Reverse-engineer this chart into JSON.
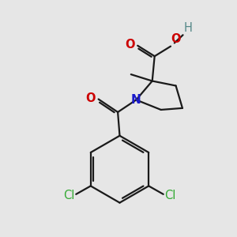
{
  "background_color": "#e6e6e6",
  "bond_color": "#1a1a1a",
  "oxygen_color": "#cc0000",
  "nitrogen_color": "#1a1acc",
  "chlorine_color": "#33aa33",
  "hydrogen_color": "#558888",
  "font_size_atoms": 10.5,
  "line_width": 1.6,
  "xlim": [
    0,
    10
  ],
  "ylim": [
    0,
    10
  ]
}
